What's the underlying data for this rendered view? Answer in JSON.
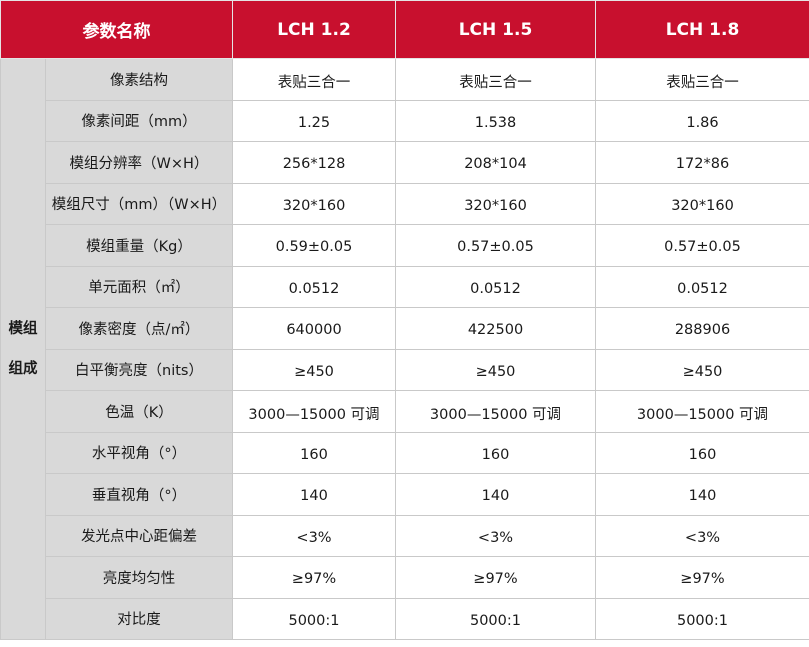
{
  "table": {
    "header": {
      "param_label": "参数名称",
      "models": [
        "LCH 1.2",
        "LCH 1.5",
        "LCH 1.8"
      ]
    },
    "group_label_lines": [
      "模组",
      "组成"
    ],
    "rows": [
      {
        "param": "像素结构",
        "values": [
          "表贴三合一",
          "表贴三合一",
          "表贴三合一"
        ]
      },
      {
        "param": "像素间距（mm）",
        "values": [
          "1.25",
          "1.538",
          "1.86"
        ]
      },
      {
        "param": "模组分辨率（W×H）",
        "values": [
          "256*128",
          "208*104",
          "172*86"
        ]
      },
      {
        "param": "模组尺寸（mm）（W×H）",
        "values": [
          "320*160",
          "320*160",
          "320*160"
        ]
      },
      {
        "param": "模组重量（Kg）",
        "values": [
          "0.59±0.05",
          "0.57±0.05",
          "0.57±0.05"
        ]
      },
      {
        "param": "单元面积（㎡）",
        "values": [
          "0.0512",
          "0.0512",
          "0.0512"
        ]
      },
      {
        "param": "像素密度（点/㎡）",
        "values": [
          "640000",
          "422500",
          "288906"
        ]
      },
      {
        "param": "白平衡亮度（nits）",
        "values": [
          "≥450",
          "≥450",
          "≥450"
        ]
      },
      {
        "param": "色温（K）",
        "values": [
          "3000—15000 可调",
          "3000—15000 可调",
          "3000—15000 可调"
        ]
      },
      {
        "param": "水平视角（°）",
        "values": [
          "160",
          "160",
          "160"
        ]
      },
      {
        "param": "垂直视角（°）",
        "values": [
          "140",
          "140",
          "140"
        ]
      },
      {
        "param": "发光点中心距偏差",
        "values": [
          "<3%",
          "<3%",
          "<3%"
        ]
      },
      {
        "param": "亮度均匀性",
        "values": [
          "≥97%",
          "≥97%",
          "≥97%"
        ]
      },
      {
        "param": "对比度",
        "values": [
          "5000:1",
          "5000:1",
          "5000:1"
        ]
      }
    ]
  },
  "colors": {
    "header_bg": "#c8102e",
    "header_text": "#ffffff",
    "param_bg": "#d9d9d9",
    "value_bg": "#ffffff",
    "border": "#c9c9c9"
  }
}
